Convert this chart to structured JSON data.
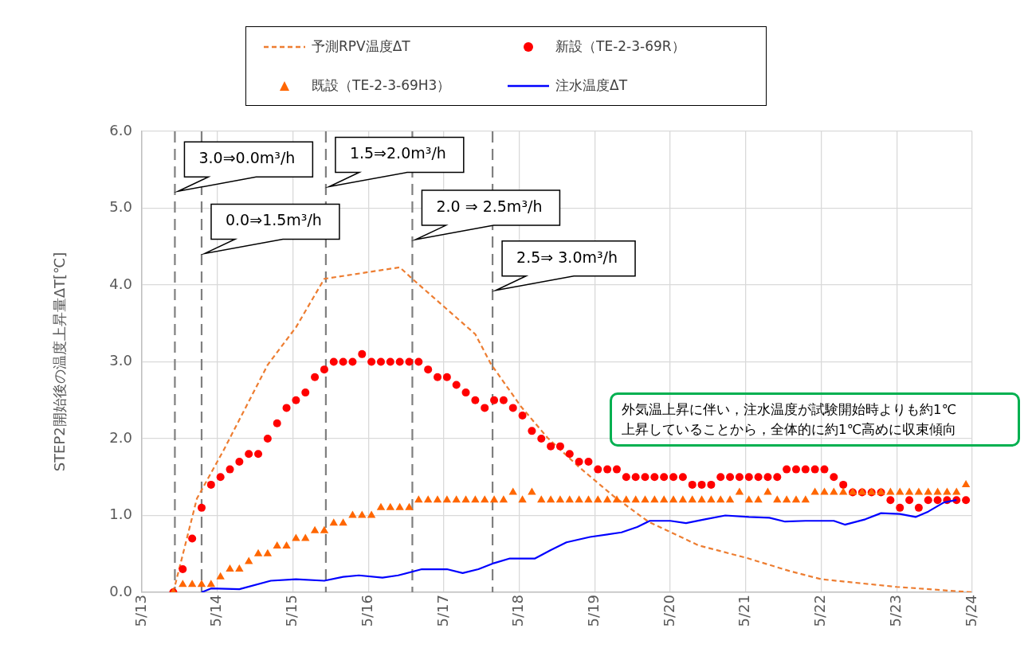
{
  "chart_data": {
    "type": "scatter",
    "ylabel": "STEP2開始後の温度上昇量ΔT[℃]",
    "x": [
      "--05-13T10:00",
      "--05-13T13:00",
      "--05-13T16:00",
      "--05-13T19:00",
      "--05-13T22:00",
      "--05-14T01:00",
      "--05-14T04:00",
      "--05-14T07:00",
      "--05-14T10:00",
      "--05-14T13:00",
      "--05-14T16:00",
      "--05-14T19:00",
      "--05-14T22:00",
      "--05-15T01:00",
      "--05-15T04:00",
      "--05-15T07:00",
      "--05-15T10:00",
      "--05-15T13:00",
      "--05-15T16:00",
      "--05-15T19:00",
      "--05-15T22:00",
      "--05-16T01:00",
      "--05-16T04:00",
      "--05-16T07:00",
      "--05-16T10:00",
      "--05-16T13:00",
      "--05-16T16:00",
      "--05-16T19:00",
      "--05-16T22:00",
      "--05-17T01:00",
      "--05-17T04:00",
      "--05-17T07:00",
      "--05-17T10:00",
      "--05-17T13:00",
      "--05-17T16:00",
      "--05-17T19:00",
      "--05-17T22:00",
      "--05-18T01:00",
      "--05-18T04:00",
      "--05-18T07:00",
      "--05-18T10:00",
      "--05-18T13:00",
      "--05-18T16:00",
      "--05-18T19:00",
      "--05-18T22:00",
      "--05-19T01:00",
      "--05-19T04:00",
      "--05-19T07:00",
      "--05-19T10:00",
      "--05-19T13:00",
      "--05-19T16:00",
      "--05-19T19:00",
      "--05-19T22:00",
      "--05-20T01:00",
      "--05-20T04:00",
      "--05-20T07:00",
      "--05-20T10:00",
      "--05-20T13:00",
      "--05-20T16:00",
      "--05-20T19:00",
      "--05-20T22:00",
      "--05-21T01:00",
      "--05-21T04:00",
      "--05-21T07:00",
      "--05-21T10:00",
      "--05-21T13:00",
      "--05-21T16:00",
      "--05-21T19:00",
      "--05-21T22:00",
      "--05-22T01:00",
      "--05-22T04:00",
      "--05-22T07:00",
      "--05-22T10:00",
      "--05-22T13:00",
      "--05-22T16:00",
      "--05-22T19:00",
      "--05-22T22:00",
      "--05-23T01:00",
      "--05-23T04:00",
      "--05-23T07:00",
      "--05-23T10:00",
      "--05-23T13:00",
      "--05-23T16:00",
      "--05-23T19:00",
      "--05-23T22:00"
    ],
    "series": [
      {
        "name": "予測RPV温度ΔT",
        "type": "line",
        "color": "#ed7d31",
        "line_style": "dashed",
        "marker": "none",
        "x": [
          "--05-13T10:00",
          "--05-13T17:30",
          "--05-14T02:00",
          "--05-14T16:00",
          "--05-15T01:00",
          "--05-15T10:00",
          "--05-16T10:00",
          "--05-16T14:00",
          "--05-17T10:00",
          "--05-17T15:00",
          "--05-18T00:30",
          "--05-18T09:00",
          "--05-18T19:00",
          "--05-19T06:00",
          "--05-19T17:00",
          "--05-20T09:00",
          "--05-21T00:00",
          "--05-21T14:30",
          "--05-22T00:00",
          "--05-23T00:00",
          "--05-24T00:00"
        ],
        "values": [
          0,
          1.22,
          1.85,
          2.96,
          3.45,
          4.08,
          4.23,
          4.08,
          3.36,
          2.97,
          2.42,
          2.01,
          1.63,
          1.25,
          0.92,
          0.61,
          0.45,
          0.27,
          0.17,
          0.07,
          0
        ]
      },
      {
        "name": "新設（TE-2-3-69R）",
        "color": "#ff0000",
        "marker": "circle",
        "values": [
          0,
          0.3,
          0.7,
          1.1,
          1.4,
          1.5,
          1.6,
          1.7,
          1.8,
          1.8,
          2.0,
          2.2,
          2.4,
          2.5,
          2.6,
          2.8,
          2.9,
          3.0,
          3.0,
          3.0,
          3.1,
          3.0,
          3.0,
          3.0,
          3.0,
          3.0,
          3.0,
          2.9,
          2.8,
          2.8,
          2.7,
          2.6,
          2.5,
          2.4,
          2.5,
          2.5,
          2.4,
          2.3,
          2.1,
          2.0,
          1.9,
          1.9,
          1.8,
          1.7,
          1.7,
          1.6,
          1.6,
          1.6,
          1.5,
          1.5,
          1.5,
          1.5,
          1.5,
          1.5,
          1.5,
          1.4,
          1.4,
          1.4,
          1.5,
          1.5,
          1.5,
          1.5,
          1.5,
          1.5,
          1.5,
          1.6,
          1.6,
          1.6,
          1.6,
          1.6,
          1.5,
          1.4,
          1.3,
          1.3,
          1.3,
          1.3,
          1.2,
          1.1,
          1.2,
          1.1,
          1.2,
          1.2,
          1.2,
          1.2,
          1.2
        ]
      },
      {
        "name": "既設（TE-2-3-69H3）",
        "color": "#ff6600",
        "marker": "triangle",
        "values": [
          0,
          0.1,
          0.1,
          0.1,
          0.1,
          0.2,
          0.3,
          0.3,
          0.4,
          0.5,
          0.5,
          0.6,
          0.6,
          0.7,
          0.7,
          0.8,
          0.8,
          0.9,
          0.9,
          1.0,
          1.0,
          1.0,
          1.1,
          1.1,
          1.1,
          1.1,
          1.2,
          1.2,
          1.2,
          1.2,
          1.2,
          1.2,
          1.2,
          1.2,
          1.2,
          1.2,
          1.3,
          1.2,
          1.3,
          1.2,
          1.2,
          1.2,
          1.2,
          1.2,
          1.2,
          1.2,
          1.2,
          1.2,
          1.2,
          1.2,
          1.2,
          1.2,
          1.2,
          1.2,
          1.2,
          1.2,
          1.2,
          1.2,
          1.2,
          1.2,
          1.3,
          1.2,
          1.2,
          1.3,
          1.2,
          1.2,
          1.2,
          1.2,
          1.3,
          1.3,
          1.3,
          1.3,
          1.3,
          1.3,
          1.3,
          1.3,
          1.3,
          1.3,
          1.3,
          1.3,
          1.3,
          1.3,
          1.3,
          1.3,
          1.4
        ]
      },
      {
        "name": "注水温度ΔT",
        "type": "line",
        "color": "#0000ff",
        "line_style": "solid",
        "marker": "none",
        "x": [
          "--05-13T19:00",
          "--05-13T22:00",
          "--05-14T07:00",
          "--05-14T17:00",
          "--05-15T01:00",
          "--05-15T10:00",
          "--05-15T16:00",
          "--05-15T21:00",
          "--05-16T04:30",
          "--05-16T09:30",
          "--05-16T17:00",
          "--05-17T01:00",
          "--05-17T06:00",
          "--05-17T11:00",
          "--05-17T16:00",
          "--05-17T21:00",
          "--05-18T05:00",
          "--05-18T10:00",
          "--05-18T15:00",
          "--05-18T22:30",
          "--05-19T08:30",
          "--05-19T13:30",
          "--05-19T17:30",
          "--05-20T00:00",
          "--05-20T05:00",
          "--05-20T11:00",
          "--05-20T17:30",
          "--05-21T01:00",
          "--05-21T07:30",
          "--05-21T12:30",
          "--05-21T19:00",
          "--05-22T04:00",
          "--05-22T07:30",
          "--05-22T14:00",
          "--05-22T19:00",
          "--05-23T01:00",
          "--05-23T06:00",
          "--05-23T10:00",
          "--05-23T15:00",
          "--05-23T19:00"
        ],
        "values": [
          0,
          0.05,
          0.04,
          0.15,
          0.17,
          0.15,
          0.2,
          0.22,
          0.19,
          0.22,
          0.3,
          0.3,
          0.25,
          0.3,
          0.38,
          0.44,
          0.44,
          0.55,
          0.65,
          0.72,
          0.78,
          0.85,
          0.93,
          0.93,
          0.9,
          0.95,
          1.0,
          0.98,
          0.97,
          0.92,
          0.93,
          0.93,
          0.88,
          0.95,
          1.03,
          1.02,
          0.98,
          1.05,
          1.17,
          1.2
        ]
      }
    ],
    "xlim": [
      "--05-13",
      "--05-24"
    ],
    "xticks": [
      {
        "value": "--05-13",
        "label": "5/13"
      },
      {
        "value": "--05-14",
        "label": "5/14"
      },
      {
        "value": "--05-15",
        "label": "5/15"
      },
      {
        "value": "--05-16",
        "label": "5/16"
      },
      {
        "value": "--05-17",
        "label": "5/17"
      },
      {
        "value": "--05-18",
        "label": "5/18"
      },
      {
        "value": "--05-19",
        "label": "5/19"
      },
      {
        "value": "--05-20",
        "label": "5/20"
      },
      {
        "value": "--05-21",
        "label": "5/21"
      },
      {
        "value": "--05-22",
        "label": "5/22"
      },
      {
        "value": "--05-23",
        "label": "5/23"
      },
      {
        "value": "--05-24",
        "label": "5/24"
      }
    ],
    "ylim": [
      0,
      6
    ],
    "yticks": [
      {
        "value": 0,
        "label": "0.0"
      },
      {
        "value": 1,
        "label": "1.0"
      },
      {
        "value": 2,
        "label": "2.0"
      },
      {
        "value": 3,
        "label": "3.0"
      },
      {
        "value": 4,
        "label": "4.0"
      },
      {
        "value": 5,
        "label": "5.0"
      },
      {
        "value": 6,
        "label": "6.0"
      }
    ],
    "ref_lines": [
      {
        "axis": "x",
        "value": "--05-13T10:30",
        "label": "3.0⇒0.0m³/h",
        "color": "#7f7f7f",
        "line_style": "dashed"
      },
      {
        "axis": "x",
        "value": "--05-13T19:00",
        "label": "0.0⇒1.5m³/h",
        "color": "#7f7f7f",
        "line_style": "dashed"
      },
      {
        "axis": "x",
        "value": "--05-15T10:30",
        "label": "1.5⇒2.0m³/h",
        "color": "#7f7f7f",
        "line_style": "dashed"
      },
      {
        "axis": "x",
        "value": "--05-16T14:00",
        "label": "2.0 ⇒ 2.5m³/h",
        "color": "#7f7f7f",
        "line_style": "dashed"
      },
      {
        "axis": "x",
        "value": "--05-17T15:30",
        "label": "2.5⇒ 3.0m³/h",
        "color": "#7f7f7f",
        "line_style": "dashed"
      }
    ],
    "annotations": [
      "外気温上昇に伴い，注水温度が試験開始時よりも約1℃\n上昇していることから，全体的に約1℃高めに収束傾向"
    ],
    "grid": true,
    "legend": "top"
  }
}
